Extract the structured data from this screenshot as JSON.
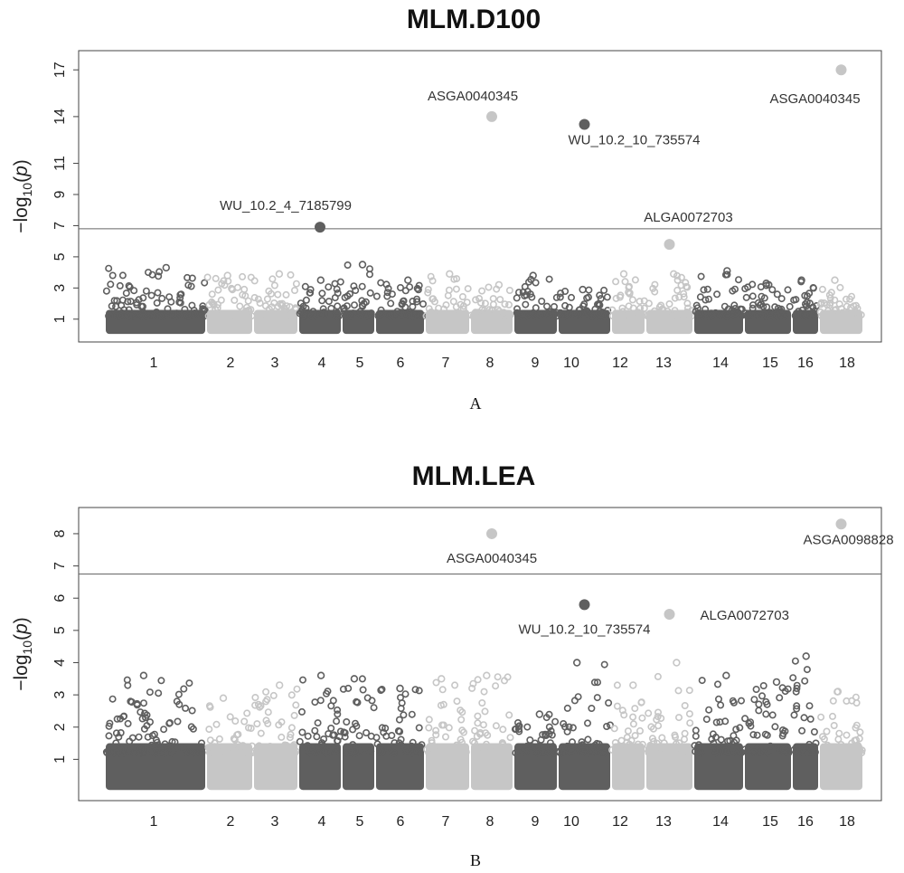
{
  "chart_data": [
    {
      "type": "scatter",
      "title": "MLM.D100",
      "ylabel": "-log10(p)",
      "xlabel": "",
      "panel_label": "A",
      "ylim": [
        0,
        18
      ],
      "yticks": [
        "1",
        "3",
        "5",
        "7",
        "9",
        "11",
        "14",
        "17"
      ],
      "xtick_labels": [
        "1",
        "2",
        "3",
        "4",
        "5",
        "6",
        "7",
        "8",
        "9",
        "10",
        "12",
        "13",
        "14",
        "15",
        "16",
        "18"
      ],
      "threshold": 6.8,
      "grid": false,
      "colors": {
        "dark": "#5f5f5f",
        "light": "#c6c6c6",
        "text": "#333333"
      },
      "chromosomes": [
        {
          "label": "1",
          "tone": "dark",
          "peak": 4.3
        },
        {
          "label": "2",
          "tone": "light",
          "peak": 3.8
        },
        {
          "label": "3",
          "tone": "light",
          "peak": 3.9
        },
        {
          "label": "4",
          "tone": "dark",
          "peak": 3.5
        },
        {
          "label": "5",
          "tone": "dark",
          "peak": 4.5
        },
        {
          "label": "6",
          "tone": "dark",
          "peak": 3.5
        },
        {
          "label": "7",
          "tone": "light",
          "peak": 3.9
        },
        {
          "label": "8",
          "tone": "light",
          "peak": 3.2
        },
        {
          "label": "9",
          "tone": "dark",
          "peak": 3.8
        },
        {
          "label": "10",
          "tone": "dark",
          "peak": 2.9
        },
        {
          "label": "12",
          "tone": "light",
          "peak": 3.9
        },
        {
          "label": "13",
          "tone": "light",
          "peak": 3.9
        },
        {
          "label": "14",
          "tone": "dark",
          "peak": 4.1
        },
        {
          "label": "15",
          "tone": "dark",
          "peak": 3.3
        },
        {
          "label": "16",
          "tone": "dark",
          "peak": 3.5
        },
        {
          "label": "18",
          "tone": "light",
          "peak": 3.5
        }
      ],
      "significant": [
        {
          "snp": "WU_10.2_4_7185799",
          "chr": "4",
          "y": 6.9
        },
        {
          "snp": "ASGA0040345",
          "chr": "8",
          "y": 14.0
        },
        {
          "snp": "WU_10.2_10_735574",
          "chr": "10",
          "y": 13.5
        },
        {
          "snp": "ALGA0072703",
          "chr": "13",
          "y": 5.8
        },
        {
          "snp": "ASGA0040345",
          "chr": "18",
          "y": 17.0
        }
      ]
    },
    {
      "type": "scatter",
      "title": "MLM.LEA",
      "ylabel": "-log10(p)",
      "xlabel": "",
      "panel_label": "B",
      "ylim": [
        0,
        8.7
      ],
      "yticks": [
        "1",
        "2",
        "3",
        "4",
        "5",
        "6",
        "7",
        "8"
      ],
      "xtick_labels": [
        "1",
        "2",
        "3",
        "4",
        "5",
        "6",
        "7",
        "8",
        "9",
        "10",
        "12",
        "13",
        "14",
        "15",
        "16",
        "18"
      ],
      "threshold": 6.75,
      "grid": false,
      "colors": {
        "dark": "#5f5f5f",
        "light": "#c6c6c6",
        "text": "#333333"
      },
      "chromosomes": [
        {
          "label": "1",
          "tone": "dark",
          "peak": 3.6
        },
        {
          "label": "2",
          "tone": "light",
          "peak": 2.9
        },
        {
          "label": "3",
          "tone": "light",
          "peak": 3.3
        },
        {
          "label": "4",
          "tone": "dark",
          "peak": 3.6
        },
        {
          "label": "5",
          "tone": "dark",
          "peak": 3.5
        },
        {
          "label": "6",
          "tone": "dark",
          "peak": 3.2
        },
        {
          "label": "7",
          "tone": "light",
          "peak": 3.5
        },
        {
          "label": "8",
          "tone": "light",
          "peak": 3.6
        },
        {
          "label": "9",
          "tone": "dark",
          "peak": 2.4
        },
        {
          "label": "10",
          "tone": "dark",
          "peak": 4.0
        },
        {
          "label": "12",
          "tone": "light",
          "peak": 3.3
        },
        {
          "label": "13",
          "tone": "light",
          "peak": 4.0
        },
        {
          "label": "14",
          "tone": "dark",
          "peak": 3.6
        },
        {
          "label": "15",
          "tone": "dark",
          "peak": 3.4
        },
        {
          "label": "16",
          "tone": "dark",
          "peak": 4.2
        },
        {
          "label": "18",
          "tone": "light",
          "peak": 3.1
        }
      ],
      "significant": [
        {
          "snp": "ASGA0040345",
          "chr": "8",
          "y": 8.0
        },
        {
          "snp": "WU_10.2_10_735574",
          "chr": "10",
          "y": 5.8
        },
        {
          "snp": "ALGA0072703",
          "chr": "13",
          "y": 5.5
        },
        {
          "snp": "ASGA0098828",
          "chr": "18",
          "y": 8.3
        }
      ]
    }
  ]
}
